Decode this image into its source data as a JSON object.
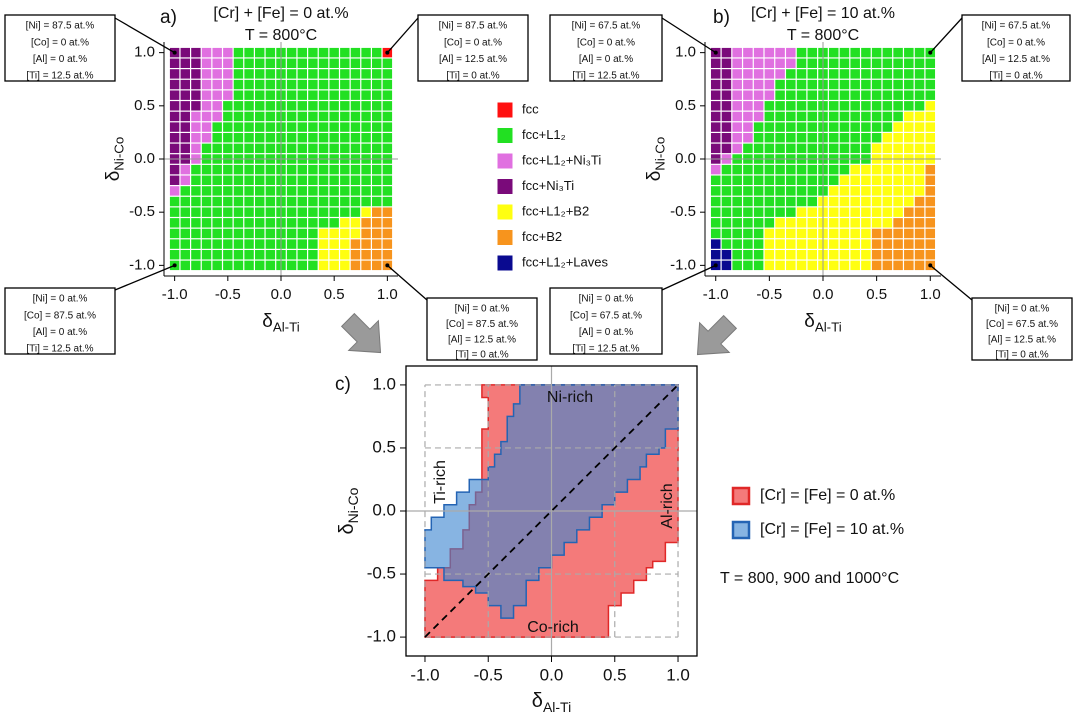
{
  "chart_data": [
    {
      "type": "phase-map",
      "label": "a)",
      "title": "[Cr] + [Fe] = 0 at.%",
      "subtitle": "T = 800°C",
      "x_label": {
        "symbol": "δ",
        "subscript": "Al-Ti"
      },
      "y_label": {
        "symbol": "δ",
        "subscript": "Ni-Co"
      },
      "xlim": [
        -1.1,
        1.1
      ],
      "ylim": [
        -1.1,
        1.1
      ],
      "xticks": [
        {
          "value": -1,
          "label": "-1.0"
        },
        {
          "value": -0.5,
          "label": "-0.5"
        },
        {
          "value": 0,
          "label": "0.0"
        },
        {
          "value": 0.5,
          "label": "0.5"
        },
        {
          "value": 1,
          "label": "1.0"
        }
      ],
      "yticks": [
        {
          "value": -1,
          "label": "-1.0"
        },
        {
          "value": -0.5,
          "label": "-0.5"
        },
        {
          "value": 0,
          "label": "0.0"
        },
        {
          "value": 0.5,
          "label": "0.5"
        },
        {
          "value": 1,
          "label": "1.0"
        }
      ],
      "x": [
        -1.0,
        -0.9,
        -0.8,
        -0.7,
        -0.6,
        -0.5,
        -0.4,
        -0.3,
        -0.2,
        -0.1,
        0.0,
        0.1,
        0.2,
        0.3,
        0.4,
        0.5,
        0.6,
        0.7,
        0.8,
        0.9,
        1.0
      ],
      "y": [
        1.0,
        0.9,
        0.8,
        0.7,
        0.6,
        0.5,
        0.4,
        0.3,
        0.2,
        0.1,
        0.0,
        -0.1,
        -0.2,
        -0.3,
        -0.4,
        -0.5,
        -0.6,
        -0.7,
        -0.8,
        -0.9,
        -1.0
      ],
      "rows": [
        [
          [
            3,
            3
          ],
          [
            2,
            3
          ],
          [
            1,
            14
          ],
          [
            0,
            1
          ]
        ],
        [
          [
            3,
            3
          ],
          [
            2,
            3
          ],
          [
            1,
            15
          ]
        ],
        [
          [
            3,
            3
          ],
          [
            2,
            3
          ],
          [
            1,
            15
          ]
        ],
        [
          [
            3,
            3
          ],
          [
            2,
            3
          ],
          [
            1,
            15
          ]
        ],
        [
          [
            3,
            3
          ],
          [
            2,
            3
          ],
          [
            1,
            15
          ]
        ],
        [
          [
            3,
            3
          ],
          [
            2,
            2
          ],
          [
            1,
            16
          ]
        ],
        [
          [
            3,
            2
          ],
          [
            2,
            3
          ],
          [
            1,
            16
          ]
        ],
        [
          [
            3,
            2
          ],
          [
            2,
            2
          ],
          [
            1,
            17
          ]
        ],
        [
          [
            3,
            2
          ],
          [
            2,
            2
          ],
          [
            1,
            17
          ]
        ],
        [
          [
            3,
            2
          ],
          [
            2,
            1
          ],
          [
            1,
            18
          ]
        ],
        [
          [
            3,
            2
          ],
          [
            2,
            1
          ],
          [
            1,
            18
          ]
        ],
        [
          [
            3,
            1
          ],
          [
            2,
            1
          ],
          [
            1,
            19
          ]
        ],
        [
          [
            3,
            1
          ],
          [
            2,
            1
          ],
          [
            1,
            19
          ]
        ],
        [
          [
            2,
            1
          ],
          [
            1,
            20
          ]
        ],
        [
          [
            1,
            21
          ]
        ],
        [
          [
            1,
            18
          ],
          [
            4,
            1
          ],
          [
            5,
            2
          ]
        ],
        [
          [
            1,
            16
          ],
          [
            4,
            2
          ],
          [
            5,
            3
          ]
        ],
        [
          [
            1,
            14
          ],
          [
            4,
            4
          ],
          [
            5,
            3
          ]
        ],
        [
          [
            1,
            14
          ],
          [
            4,
            3
          ],
          [
            5,
            4
          ]
        ],
        [
          [
            1,
            14
          ],
          [
            4,
            3
          ],
          [
            5,
            4
          ]
        ],
        [
          [
            1,
            14
          ],
          [
            4,
            3
          ],
          [
            5,
            4
          ]
        ]
      ],
      "corners": [
        {
          "lines": [
            "[Ni] = 87.5 at.%",
            "[Co] = 0 at.%",
            "[Al] = 0 at.%",
            "[Ti] = 12.5 at.%"
          ]
        },
        {
          "lines": [
            "[Ni] = 87.5 at.%",
            "[Co] = 0 at.%",
            "[Al] = 12.5 at.%",
            "[Ti] = 0 at.%"
          ]
        },
        {
          "lines": [
            "[Ni] = 0 at.%",
            "[Co] = 87.5 at.%",
            "[Al] = 0 at.%",
            "[Ti] = 12.5 at.%"
          ]
        },
        {
          "lines": [
            "[Ni] = 0 at.%",
            "[Co] = 87.5 at.%",
            "[Al] = 12.5 at.%",
            "[Ti] = 0 at.%"
          ]
        }
      ],
      "legend": [
        {
          "name": "fcc",
          "color": "#ff1010"
        },
        {
          "name": "fcc+L1₂",
          "color": "#22e022"
        },
        {
          "name": "fcc+L1₂+Ni₃Ti",
          "color": "#e070e0"
        },
        {
          "name": "fcc+Ni₃Ti",
          "color": "#7a0a7a"
        },
        {
          "name": "fcc+L1₂+B2",
          "color": "#ffff10"
        },
        {
          "name": "fcc+B2",
          "color": "#f7941d"
        },
        {
          "name": "fcc+L1₂+Laves",
          "color": "#0a0a90"
        }
      ]
    },
    {
      "type": "phase-map",
      "label": "b)",
      "title": "[Cr] + [Fe] = 10 at.%",
      "subtitle": "T = 800°C",
      "x_label": {
        "symbol": "δ",
        "subscript": "Al-Ti"
      },
      "y_label": {
        "symbol": "δ",
        "subscript": "Ni-Co"
      },
      "xlim": [
        -1.1,
        1.1
      ],
      "ylim": [
        -1.1,
        1.1
      ],
      "xticks": [
        {
          "value": -1,
          "label": "-1.0"
        },
        {
          "value": -0.5,
          "label": "-0.5"
        },
        {
          "value": 0,
          "label": "0.0"
        },
        {
          "value": 0.5,
          "label": "0.5"
        },
        {
          "value": 1,
          "label": "1.0"
        }
      ],
      "yticks": [
        {
          "value": -1,
          "label": "-1.0"
        },
        {
          "value": -0.5,
          "label": "-0.5"
        },
        {
          "value": 0,
          "label": "0.0"
        },
        {
          "value": 0.5,
          "label": "0.5"
        },
        {
          "value": 1,
          "label": "1.0"
        }
      ],
      "x": [
        -1.0,
        -0.9,
        -0.8,
        -0.7,
        -0.6,
        -0.5,
        -0.4,
        -0.3,
        -0.2,
        -0.1,
        0.0,
        0.1,
        0.2,
        0.3,
        0.4,
        0.5,
        0.6,
        0.7,
        0.8,
        0.9,
        1.0
      ],
      "y": [
        1.0,
        0.9,
        0.8,
        0.7,
        0.6,
        0.5,
        0.4,
        0.3,
        0.2,
        0.1,
        0.0,
        -0.1,
        -0.2,
        -0.3,
        -0.4,
        -0.5,
        -0.6,
        -0.7,
        -0.8,
        -0.9,
        -1.0
      ],
      "rows": [
        [
          [
            3,
            2
          ],
          [
            2,
            6
          ],
          [
            1,
            13
          ]
        ],
        [
          [
            3,
            2
          ],
          [
            2,
            6
          ],
          [
            1,
            13
          ]
        ],
        [
          [
            3,
            2
          ],
          [
            2,
            5
          ],
          [
            1,
            14
          ]
        ],
        [
          [
            3,
            2
          ],
          [
            2,
            4
          ],
          [
            1,
            15
          ]
        ],
        [
          [
            3,
            2
          ],
          [
            2,
            4
          ],
          [
            1,
            15
          ]
        ],
        [
          [
            3,
            2
          ],
          [
            2,
            3
          ],
          [
            1,
            15
          ],
          [
            4,
            1
          ]
        ],
        [
          [
            3,
            2
          ],
          [
            2,
            3
          ],
          [
            1,
            13
          ],
          [
            4,
            3
          ]
        ],
        [
          [
            3,
            2
          ],
          [
            2,
            2
          ],
          [
            1,
            13
          ],
          [
            4,
            4
          ]
        ],
        [
          [
            3,
            2
          ],
          [
            2,
            2
          ],
          [
            1,
            12
          ],
          [
            4,
            5
          ]
        ],
        [
          [
            3,
            2
          ],
          [
            2,
            1
          ],
          [
            1,
            12
          ],
          [
            4,
            6
          ]
        ],
        [
          [
            3,
            1
          ],
          [
            2,
            1
          ],
          [
            1,
            13
          ],
          [
            4,
            6
          ]
        ],
        [
          [
            2,
            1
          ],
          [
            1,
            12
          ],
          [
            4,
            7
          ],
          [
            5,
            1
          ]
        ],
        [
          [
            1,
            12
          ],
          [
            4,
            8
          ],
          [
            5,
            1
          ]
        ],
        [
          [
            1,
            11
          ],
          [
            4,
            9
          ],
          [
            5,
            1
          ]
        ],
        [
          [
            1,
            10
          ],
          [
            4,
            9
          ],
          [
            5,
            2
          ]
        ],
        [
          [
            1,
            8
          ],
          [
            4,
            10
          ],
          [
            5,
            3
          ]
        ],
        [
          [
            1,
            6
          ],
          [
            4,
            11
          ],
          [
            5,
            4
          ]
        ],
        [
          [
            1,
            5
          ],
          [
            4,
            10
          ],
          [
            5,
            6
          ]
        ],
        [
          [
            6,
            1
          ],
          [
            1,
            4
          ],
          [
            4,
            10
          ],
          [
            5,
            6
          ]
        ],
        [
          [
            6,
            2
          ],
          [
            1,
            3
          ],
          [
            4,
            10
          ],
          [
            5,
            6
          ]
        ],
        [
          [
            6,
            2
          ],
          [
            1,
            3
          ],
          [
            4,
            10
          ],
          [
            5,
            6
          ]
        ]
      ],
      "corners": [
        {
          "lines": [
            "[Ni] = 67.5 at.%",
            "[Co] = 0 at.%",
            "[Al] = 0 at.%",
            "[Ti] = 12.5 at.%"
          ]
        },
        {
          "lines": [
            "[Ni] = 67.5 at.%",
            "[Co] = 0 at.%",
            "[Al] = 12.5 at.%",
            "[Ti] = 0 at.%"
          ]
        },
        {
          "lines": [
            "[Ni] = 0 at.%",
            "[Co] = 67.5 at.%",
            "[Al] = 0 at.%",
            "[Ti] = 12.5 at.%"
          ]
        },
        {
          "lines": [
            "[Ni] = 0 at.%",
            "[Co] = 67.5 at.%",
            "[Al] = 12.5 at.%",
            "[Ti] = 0 at.%"
          ]
        }
      ]
    },
    {
      "type": "area",
      "label": "c)",
      "x_label": {
        "symbol": "δ",
        "subscript": "Al-Ti"
      },
      "y_label": {
        "symbol": "δ",
        "subscript": "Ni-Co"
      },
      "xlim": [
        -1.15,
        1.15
      ],
      "ylim": [
        -1.15,
        1.15
      ],
      "xticks": [
        {
          "value": -1,
          "label": "-1.0"
        },
        {
          "value": -0.5,
          "label": "-0.5"
        },
        {
          "value": 0,
          "label": "0.0"
        },
        {
          "value": 0.5,
          "label": "0.5"
        },
        {
          "value": 1,
          "label": "1.0"
        }
      ],
      "yticks": [
        {
          "value": -1,
          "label": "-1.0"
        },
        {
          "value": -0.5,
          "label": "-0.5"
        },
        {
          "value": 0,
          "label": "0.0"
        },
        {
          "value": 0.5,
          "label": "0.5"
        },
        {
          "value": 1,
          "label": "1.0"
        }
      ],
      "series": [
        {
          "name": "[Cr] = [Fe] = 0 at.%",
          "color": "#e02828",
          "fill": "#f47a7a",
          "x": [
            -1,
            -1,
            -0.9,
            -0.9,
            -0.8,
            -0.8,
            -0.7,
            -0.7,
            -0.65,
            -0.65,
            -0.6,
            -0.6,
            -0.55,
            -0.55,
            -0.5,
            -0.5,
            -0.55,
            -0.55,
            1,
            1,
            0.9,
            0.9,
            0.8,
            0.8,
            0.75,
            0.75,
            0.65,
            0.65,
            0.55,
            0.55,
            0.45,
            0.45
          ],
          "y": [
            -1,
            -0.55,
            -0.55,
            -0.45,
            -0.45,
            -0.3,
            -0.3,
            -0.15,
            -0.15,
            0.05,
            0.05,
            0.15,
            0.15,
            0.65,
            0.65,
            0.9,
            0.9,
            1,
            1,
            -0.25,
            -0.25,
            -0.4,
            -0.4,
            -0.45,
            -0.45,
            -0.55,
            -0.55,
            -0.65,
            -0.65,
            -0.75,
            -0.75,
            -1
          ]
        },
        {
          "name": "[Cr] = [Fe] = 10 at.%",
          "color": "#2464b4",
          "fill": "#3d86d0",
          "x": [
            -1,
            -1,
            -0.95,
            -0.95,
            -0.85,
            -0.85,
            -0.75,
            -0.75,
            -0.65,
            -0.65,
            -0.6,
            -0.6,
            -0.5,
            -0.5,
            -0.45,
            -0.45,
            -0.4,
            -0.4,
            -0.35,
            -0.35,
            -0.3,
            -0.3,
            -0.25,
            -0.25,
            1,
            1,
            0.9,
            0.9,
            0.85,
            0.85,
            0.75,
            0.75,
            0.7,
            0.7,
            0.6,
            0.6,
            0.5,
            0.5,
            0.4,
            0.4,
            0.3,
            0.3,
            0.2,
            0.2,
            0.1,
            0.1,
            0,
            0,
            -0.1,
            -0.1,
            -0.2,
            -0.2,
            -0.3,
            -0.3,
            -0.4,
            -0.4,
            -0.5,
            -0.5,
            -0.6,
            -0.6,
            -0.7,
            -0.7,
            -0.85,
            -0.85
          ],
          "y": [
            -0.45,
            -0.15,
            -0.15,
            -0.05,
            -0.05,
            0.05,
            0.05,
            0.15,
            0.15,
            0.25,
            0.25,
            0.25,
            0.25,
            0.35,
            0.35,
            0.45,
            0.45,
            0.55,
            0.55,
            0.75,
            0.75,
            0.85,
            0.85,
            1,
            1,
            0.65,
            0.65,
            0.5,
            0.5,
            0.45,
            0.45,
            0.35,
            0.35,
            0.25,
            0.25,
            0.15,
            0.15,
            0.05,
            0.05,
            -0.05,
            -0.05,
            -0.15,
            -0.15,
            -0.25,
            -0.25,
            -0.35,
            -0.35,
            -0.45,
            -0.45,
            -0.55,
            -0.55,
            -0.75,
            -0.75,
            -0.85,
            -0.85,
            -0.75,
            -0.75,
            -0.65,
            -0.65,
            -0.6,
            -0.6,
            -0.55,
            -0.55,
            -0.45
          ]
        }
      ],
      "annotations": [
        "Ni-rich",
        "Ti-rich",
        "Al-rich",
        "Co-rich"
      ],
      "note": "T = 800, 900 and 1000°C"
    }
  ]
}
